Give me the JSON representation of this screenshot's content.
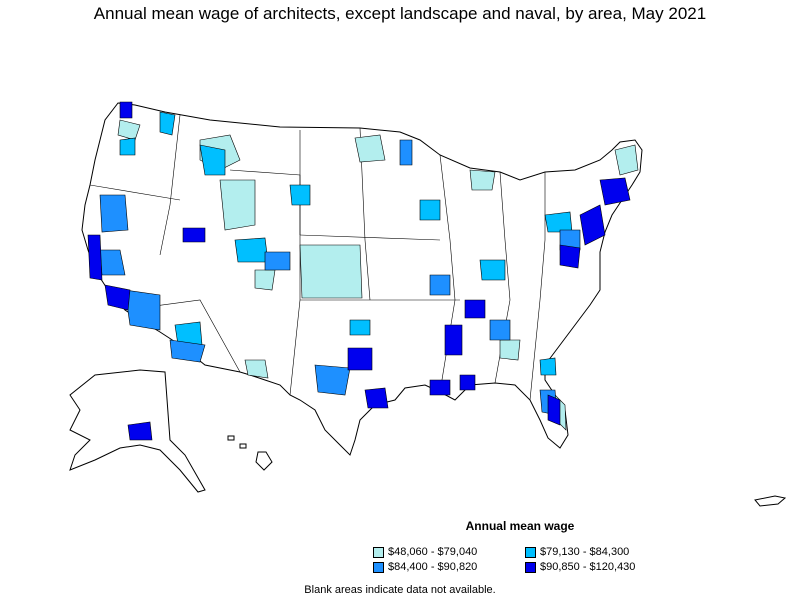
{
  "title": "Annual mean wage of architects, except landscape and naval, by area, May 2021",
  "legend": {
    "title": "Annual mean wage",
    "items": [
      {
        "label": "$48,060 - $79,040",
        "color": "#b3eeee"
      },
      {
        "label": "$79,130 - $84,300",
        "color": "#00bfff"
      },
      {
        "label": "$84,400 - $90,820",
        "color": "#1e90ff"
      },
      {
        "label": "$90,850 - $120,430",
        "color": "#0000ee"
      }
    ]
  },
  "note": "Blank areas indicate data not available."
}
